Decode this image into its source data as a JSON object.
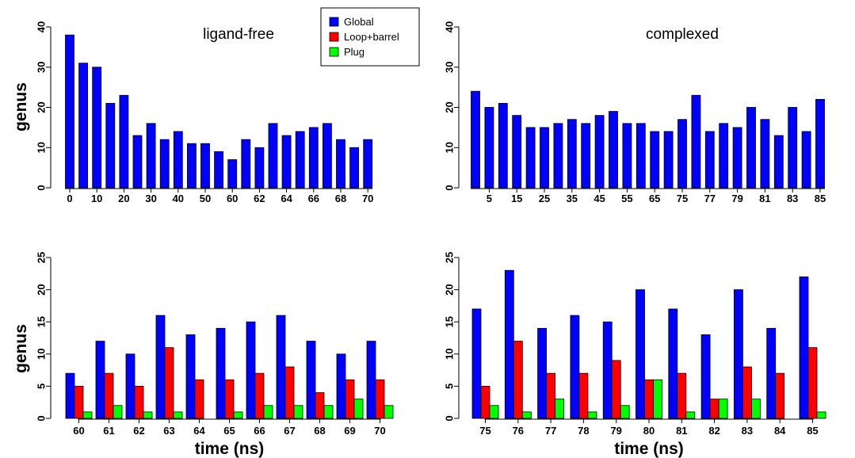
{
  "chart_data": [
    {
      "type": "bar",
      "title": "ligand-free",
      "xlabel": "",
      "ylabel": "genus",
      "ylim": [
        0,
        40
      ],
      "yticks": [
        0,
        10,
        20,
        30,
        40
      ],
      "categories": [
        "0",
        "5",
        "10",
        "15",
        "20",
        "25",
        "30",
        "35",
        "40",
        "45",
        "50",
        "55",
        "60",
        "61",
        "62",
        "63",
        "64",
        "65",
        "66",
        "67",
        "68",
        "69",
        "70"
      ],
      "x_tick_labels": [
        "0",
        "10",
        "20",
        "30",
        "40",
        "50",
        "60",
        "62",
        "64",
        "66",
        "68",
        "70"
      ],
      "series": [
        {
          "name": "Global",
          "values": [
            38,
            31,
            30,
            21,
            23,
            13,
            16,
            12,
            14,
            11,
            11,
            9,
            7,
            12,
            10,
            16,
            13,
            14,
            15,
            16,
            12,
            10,
            12
          ]
        }
      ]
    },
    {
      "type": "bar",
      "title": "complexed",
      "xlabel": "",
      "ylabel": "",
      "ylim": [
        0,
        40
      ],
      "yticks": [
        0,
        10,
        20,
        30,
        40
      ],
      "categories": [
        "0",
        "5",
        "10",
        "15",
        "20",
        "25",
        "30",
        "35",
        "40",
        "45",
        "50",
        "55",
        "60",
        "65",
        "70",
        "75",
        "76",
        "77",
        "78",
        "79",
        "80",
        "81",
        "82",
        "83",
        "84",
        "85"
      ],
      "x_tick_labels": [
        "5",
        "15",
        "25",
        "35",
        "45",
        "55",
        "65",
        "75",
        "77",
        "79",
        "81",
        "83",
        "85"
      ],
      "series": [
        {
          "name": "Global",
          "values": [
            24,
            20,
            21,
            18,
            15,
            15,
            16,
            17,
            16,
            18,
            19,
            16,
            16,
            14,
            14,
            17,
            23,
            14,
            16,
            15,
            20,
            17,
            13,
            20,
            14,
            22
          ]
        }
      ]
    },
    {
      "type": "bar",
      "title": "",
      "xlabel": "time (ns)",
      "ylabel": "genus",
      "ylim": [
        0,
        25
      ],
      "yticks": [
        0,
        5,
        10,
        15,
        20,
        25
      ],
      "categories": [
        "60",
        "61",
        "62",
        "63",
        "64",
        "65",
        "66",
        "67",
        "68",
        "69",
        "70"
      ],
      "series": [
        {
          "name": "Global",
          "values": [
            7,
            12,
            10,
            16,
            13,
            14,
            15,
            16,
            12,
            10,
            12
          ]
        },
        {
          "name": "Loop+barrel",
          "values": [
            5,
            7,
            5,
            11,
            6,
            6,
            7,
            8,
            4,
            6,
            6
          ]
        },
        {
          "name": "Plug",
          "values": [
            1,
            2,
            1,
            1,
            0,
            1,
            2,
            2,
            2,
            3,
            2
          ]
        }
      ]
    },
    {
      "type": "bar",
      "title": "",
      "xlabel": "time (ns)",
      "ylabel": "",
      "ylim": [
        0,
        25
      ],
      "yticks": [
        0,
        5,
        10,
        15,
        20,
        25
      ],
      "categories": [
        "75",
        "76",
        "77",
        "78",
        "79",
        "80",
        "81",
        "82",
        "83",
        "84",
        "85"
      ],
      "series": [
        {
          "name": "Global",
          "values": [
            17,
            23,
            14,
            16,
            15,
            20,
            17,
            13,
            20,
            14,
            22
          ]
        },
        {
          "name": "Loop+barrel",
          "values": [
            5,
            12,
            7,
            7,
            9,
            6,
            7,
            3,
            8,
            7,
            11
          ]
        },
        {
          "name": "Plug",
          "values": [
            2,
            1,
            3,
            1,
            2,
            6,
            1,
            3,
            3,
            0,
            1
          ]
        }
      ]
    }
  ],
  "legend": {
    "placement": "top-center",
    "items": [
      {
        "label": "Global",
        "color": "#0000ff"
      },
      {
        "label": "Loop+barrel",
        "color": "#ff0000"
      },
      {
        "label": "Plug",
        "color": "#00ff00"
      }
    ]
  },
  "colors": {
    "Global": "#0000ff",
    "Loop+barrel": "#ff0000",
    "Plug": "#00ff00"
  }
}
